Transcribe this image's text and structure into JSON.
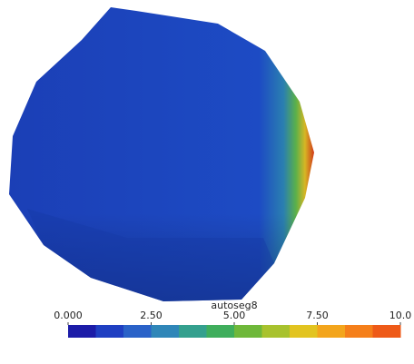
{
  "colorbar": {
    "title": "autoseg8",
    "range": [
      0,
      10
    ],
    "ticks": [
      {
        "value": 0,
        "label": "0.000"
      },
      {
        "value": 2.5,
        "label": "2.50"
      },
      {
        "value": 5,
        "label": "5.00"
      },
      {
        "value": 7.5,
        "label": "7.50"
      },
      {
        "value": 10,
        "label": "10.0"
      }
    ],
    "colors": [
      "#1c1ca8",
      "#1f3fc2",
      "#2a62c8",
      "#2f86b8",
      "#34a08e",
      "#3fae5c",
      "#6fb83a",
      "#a8c22e",
      "#e2c420",
      "#f3a51c",
      "#f57f1a",
      "#ee5a18"
    ]
  }
}
